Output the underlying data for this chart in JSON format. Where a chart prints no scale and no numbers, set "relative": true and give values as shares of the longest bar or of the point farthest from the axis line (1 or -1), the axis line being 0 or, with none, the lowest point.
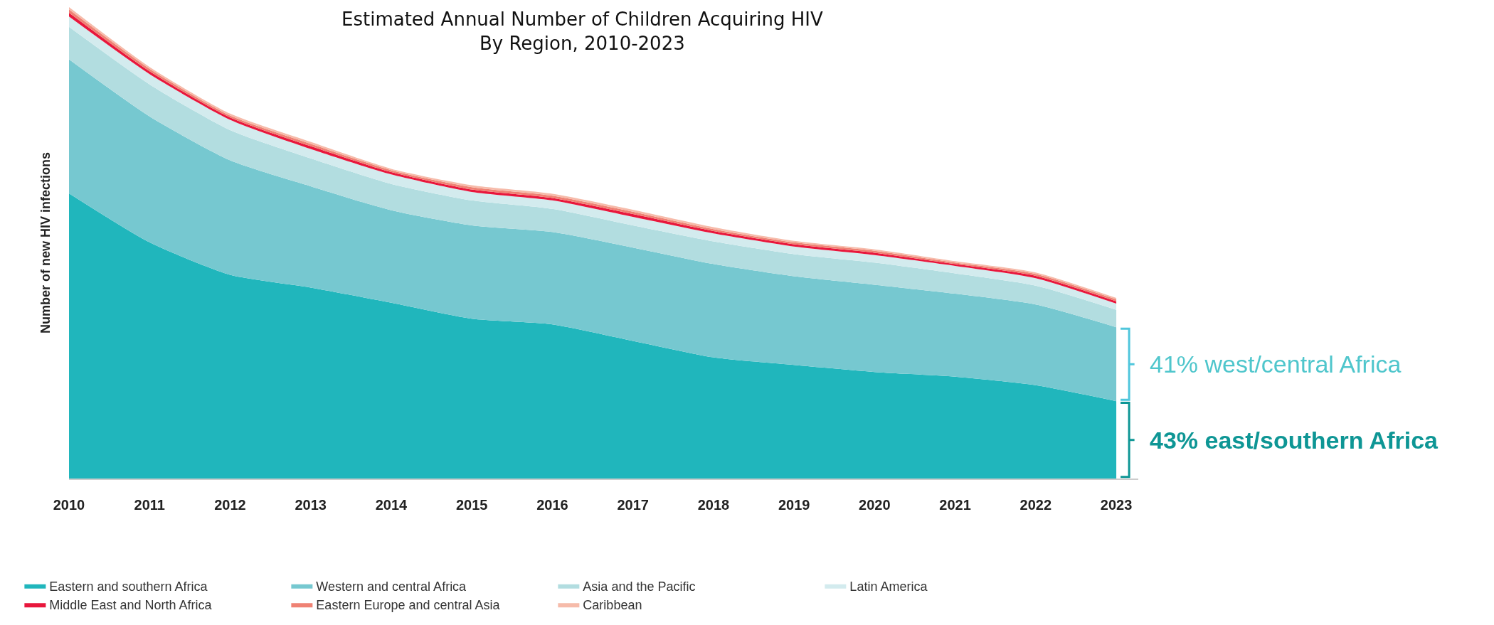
{
  "chart_data": {
    "type": "area",
    "stacked": true,
    "relative": true,
    "title": "Estimated Annual Number of Children Acquiring HIV\nBy Region, 2010-2023",
    "ylabel": "Number of new HIV infections",
    "categories": [
      "2010",
      "2011",
      "2012",
      "2013",
      "2014",
      "2015",
      "2016",
      "2017",
      "2018",
      "2019",
      "2020",
      "2021",
      "2022",
      "2023"
    ],
    "series": [
      {
        "name": "Eastern and southern Africa",
        "color": "#20b6bc",
        "values": [
          0.605,
          0.501,
          0.432,
          0.405,
          0.373,
          0.339,
          0.327,
          0.292,
          0.257,
          0.241,
          0.226,
          0.216,
          0.198,
          0.164
        ]
      },
      {
        "name": "Western and central Africa",
        "color": "#76c8d0",
        "values": [
          0.284,
          0.267,
          0.243,
          0.215,
          0.196,
          0.198,
          0.196,
          0.198,
          0.198,
          0.188,
          0.185,
          0.176,
          0.171,
          0.157
        ]
      },
      {
        "name": "Asia and the Pacific",
        "color": "#b2dde0",
        "values": [
          0.069,
          0.068,
          0.064,
          0.059,
          0.056,
          0.053,
          0.049,
          0.047,
          0.048,
          0.047,
          0.047,
          0.043,
          0.04,
          0.037
        ]
      },
      {
        "name": "Latin America",
        "color": "#d3ebee",
        "values": [
          0.022,
          0.022,
          0.022,
          0.02,
          0.02,
          0.018,
          0.018,
          0.018,
          0.017,
          0.016,
          0.016,
          0.016,
          0.016,
          0.013
        ]
      },
      {
        "name": "Middle East and North Africa",
        "color": "#e8173c",
        "values": [
          0.008,
          0.006,
          0.005,
          0.006,
          0.005,
          0.005,
          0.005,
          0.006,
          0.005,
          0.005,
          0.005,
          0.004,
          0.005,
          0.005
        ]
      },
      {
        "name": "Eastern Europe and central Asia",
        "color": "#ef8274",
        "values": [
          0.007,
          0.005,
          0.004,
          0.005,
          0.004,
          0.005,
          0.005,
          0.005,
          0.004,
          0.004,
          0.004,
          0.003,
          0.004,
          0.004
        ]
      },
      {
        "name": "Caribbean",
        "color": "#f6bbaa",
        "values": [
          0.005,
          0.004,
          0.004,
          0.004,
          0.003,
          0.004,
          0.004,
          0.004,
          0.004,
          0.003,
          0.003,
          0.003,
          0.003,
          0.003
        ]
      }
    ],
    "annotations": [
      "41% west/central Africa",
      "43% east/southern Africa"
    ],
    "legend": "bottom"
  }
}
